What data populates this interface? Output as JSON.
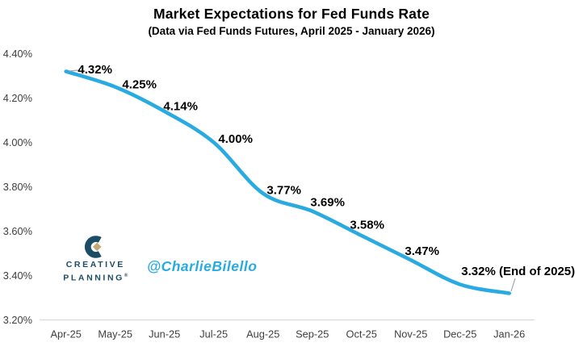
{
  "chart_data": {
    "type": "line",
    "title": "Market Expectations for Fed Funds Rate",
    "subtitle": "(Data via Fed Funds Futures, April 2025 - January 2026)",
    "categories": [
      "Apr-25",
      "May-25",
      "Jun-25",
      "Jul-25",
      "Aug-25",
      "Sep-25",
      "Oct-25",
      "Nov-25",
      "Dec-25",
      "Jan-26"
    ],
    "values": [
      4.32,
      4.25,
      4.14,
      4.0,
      3.77,
      3.69,
      3.58,
      3.47,
      3.36,
      3.32
    ],
    "point_labels": [
      "4.32%",
      "4.25%",
      "4.14%",
      "4.00%",
      "3.77%",
      "3.69%",
      "3.58%",
      "3.47%",
      "",
      "3.32% (End of 2025)"
    ],
    "ylim": [
      3.2,
      4.4
    ],
    "ytick_labels": [
      "4.40%",
      "4.20%",
      "4.00%",
      "3.80%",
      "3.60%",
      "3.40%",
      "3.20%"
    ],
    "grid": false,
    "legend": "none",
    "line_color": "#29ABE2"
  },
  "watermark": {
    "logomark_letter": "C",
    "logo_line1": "CREATIVE",
    "logo_line2": "PLANNING",
    "trademark": "®",
    "handle": "@CharlieBilello"
  },
  "colors": {
    "line": "#29ABE2",
    "data_label": "#000000",
    "axis_text": "#404040",
    "axis_line": "#D9D9D9",
    "leader_line": "#A6A6A6",
    "logo_navy": "#1C4D66",
    "logo_gold": "#C6A876",
    "handle_cyan": "#29ABE2",
    "background": "#FFFFFF"
  }
}
